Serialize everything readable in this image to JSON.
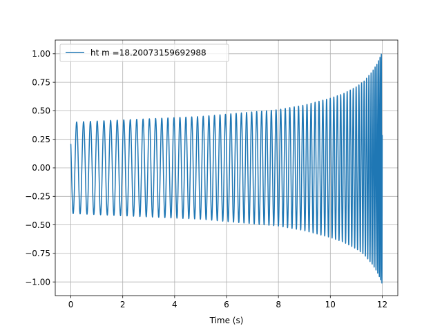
{
  "chart_data": {
    "type": "line",
    "title": "",
    "xlabel": "Time (s)",
    "ylabel": "",
    "xlim": [
      -0.6,
      12.6
    ],
    "ylim": [
      -1.12,
      1.12
    ],
    "x_ticks": [
      0,
      2,
      4,
      6,
      8,
      10,
      12
    ],
    "x_tick_labels": [
      "0",
      "2",
      "4",
      "6",
      "8",
      "10",
      "12"
    ],
    "y_ticks": [
      -1.0,
      -0.75,
      -0.5,
      -0.25,
      0.0,
      0.25,
      0.5,
      0.75,
      1.0
    ],
    "y_tick_labels": [
      "−1.00",
      "−0.75",
      "−0.50",
      "−0.25",
      "0.00",
      "0.25",
      "0.50",
      "0.75",
      "1.00"
    ],
    "grid": true,
    "legend": {
      "position": "top-left"
    },
    "series": [
      {
        "name": "ht m =18.20073159692988",
        "color": "#1f77b4",
        "description_points": {
          "envelope_t": [
            0,
            1,
            2,
            3,
            4,
            5,
            6,
            7,
            8,
            9,
            10,
            10.5,
            11,
            11.3,
            11.6,
            11.8,
            11.9,
            12.0
          ],
          "envelope_amp": [
            0.4,
            0.41,
            0.42,
            0.43,
            0.44,
            0.45,
            0.47,
            0.49,
            0.51,
            0.55,
            0.61,
            0.65,
            0.71,
            0.76,
            0.84,
            0.91,
            0.96,
            1.02
          ],
          "initial_value": 0.21
        }
      }
    ]
  }
}
